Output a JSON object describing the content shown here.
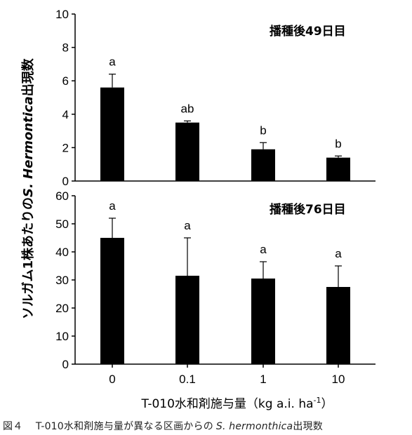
{
  "chart_data": [
    {
      "type": "bar",
      "title": "播種後49日目",
      "categories": [
        "0",
        "0.1",
        "1",
        "10"
      ],
      "values": [
        5.6,
        3.5,
        1.9,
        1.4
      ],
      "error_upper": [
        6.4,
        3.6,
        2.3,
        1.5
      ],
      "significance": [
        "a",
        "ab",
        "b",
        "b"
      ],
      "ylim": [
        0,
        10
      ],
      "yticks": [
        "0",
        "2",
        "4",
        "6",
        "8",
        "10"
      ],
      "bar_color": "#000000"
    },
    {
      "type": "bar",
      "title": "播種後76日目",
      "categories": [
        "0",
        "0.1",
        "1",
        "10"
      ],
      "values": [
        45,
        31.5,
        30.5,
        27.5
      ],
      "error_upper": [
        52,
        45,
        36.5,
        35
      ],
      "significance": [
        "a",
        "a",
        "a",
        "a"
      ],
      "ylim": [
        0,
        60
      ],
      "yticks": [
        "0",
        "10",
        "20",
        "30",
        "40",
        "50",
        "60"
      ],
      "bar_color": "#000000"
    }
  ],
  "ylabel": {
    "main": "ソルガム1株あたりの",
    "species": "S. Hermontica",
    "suffix": "出現数"
  },
  "xlabel": {
    "main": "T-010水和剤施与量（kg a.i. ha",
    "sup": "-1",
    "close": "）"
  },
  "caption": {
    "fig": "図４",
    "text": "T-010水和剤施与量が異なる区画からの",
    "species": "S. hermonthica",
    "suffix": "出現数"
  }
}
